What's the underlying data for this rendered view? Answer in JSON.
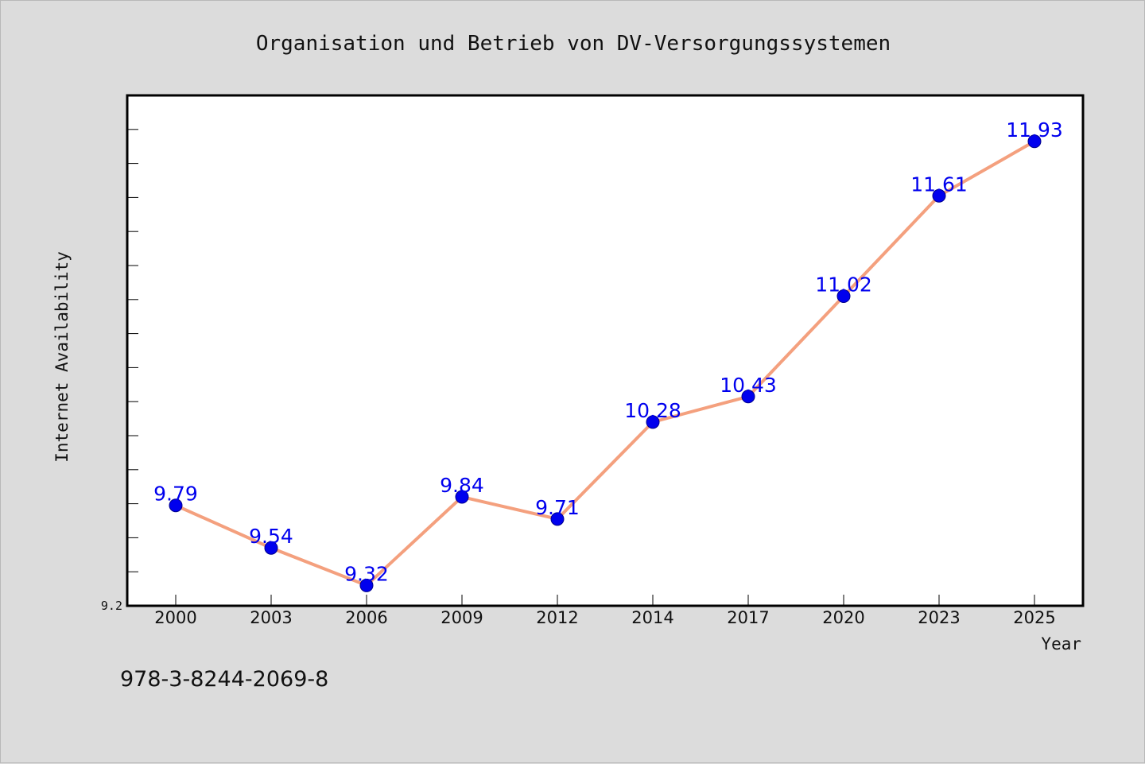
{
  "title": "Organisation und Betrieb von DV-Versorgungssystemen",
  "footer_code": "978-3-8244-2069-8",
  "colors": {
    "background": "#dcdcdc",
    "plot_background": "#ffffff",
    "line": "#f4a07e",
    "marker": "#0000ee",
    "data_label": "#0000ee"
  },
  "chart_data": {
    "type": "line",
    "xlabel": "Year",
    "ylabel": "Internet Availability",
    "categories": [
      "2000",
      "2003",
      "2006",
      "2009",
      "2012",
      "2014",
      "2017",
      "2020",
      "2023",
      "2025"
    ],
    "series": [
      {
        "values": [
          9.79,
          9.54,
          9.32,
          9.84,
          9.71,
          10.28,
          10.43,
          11.02,
          11.61,
          11.93
        ]
      }
    ],
    "data_labels": [
      "9.79",
      "9.54",
      "9.32",
      "9.84",
      "9.71",
      "10.28",
      "10.43",
      "11.02",
      "11.61",
      "11.93"
    ],
    "ytick_labels": [
      "9.2"
    ],
    "ylim": [
      9.2,
      12.2
    ],
    "y_minor_tick_step": 0.2,
    "grid": false,
    "legend": "none"
  }
}
